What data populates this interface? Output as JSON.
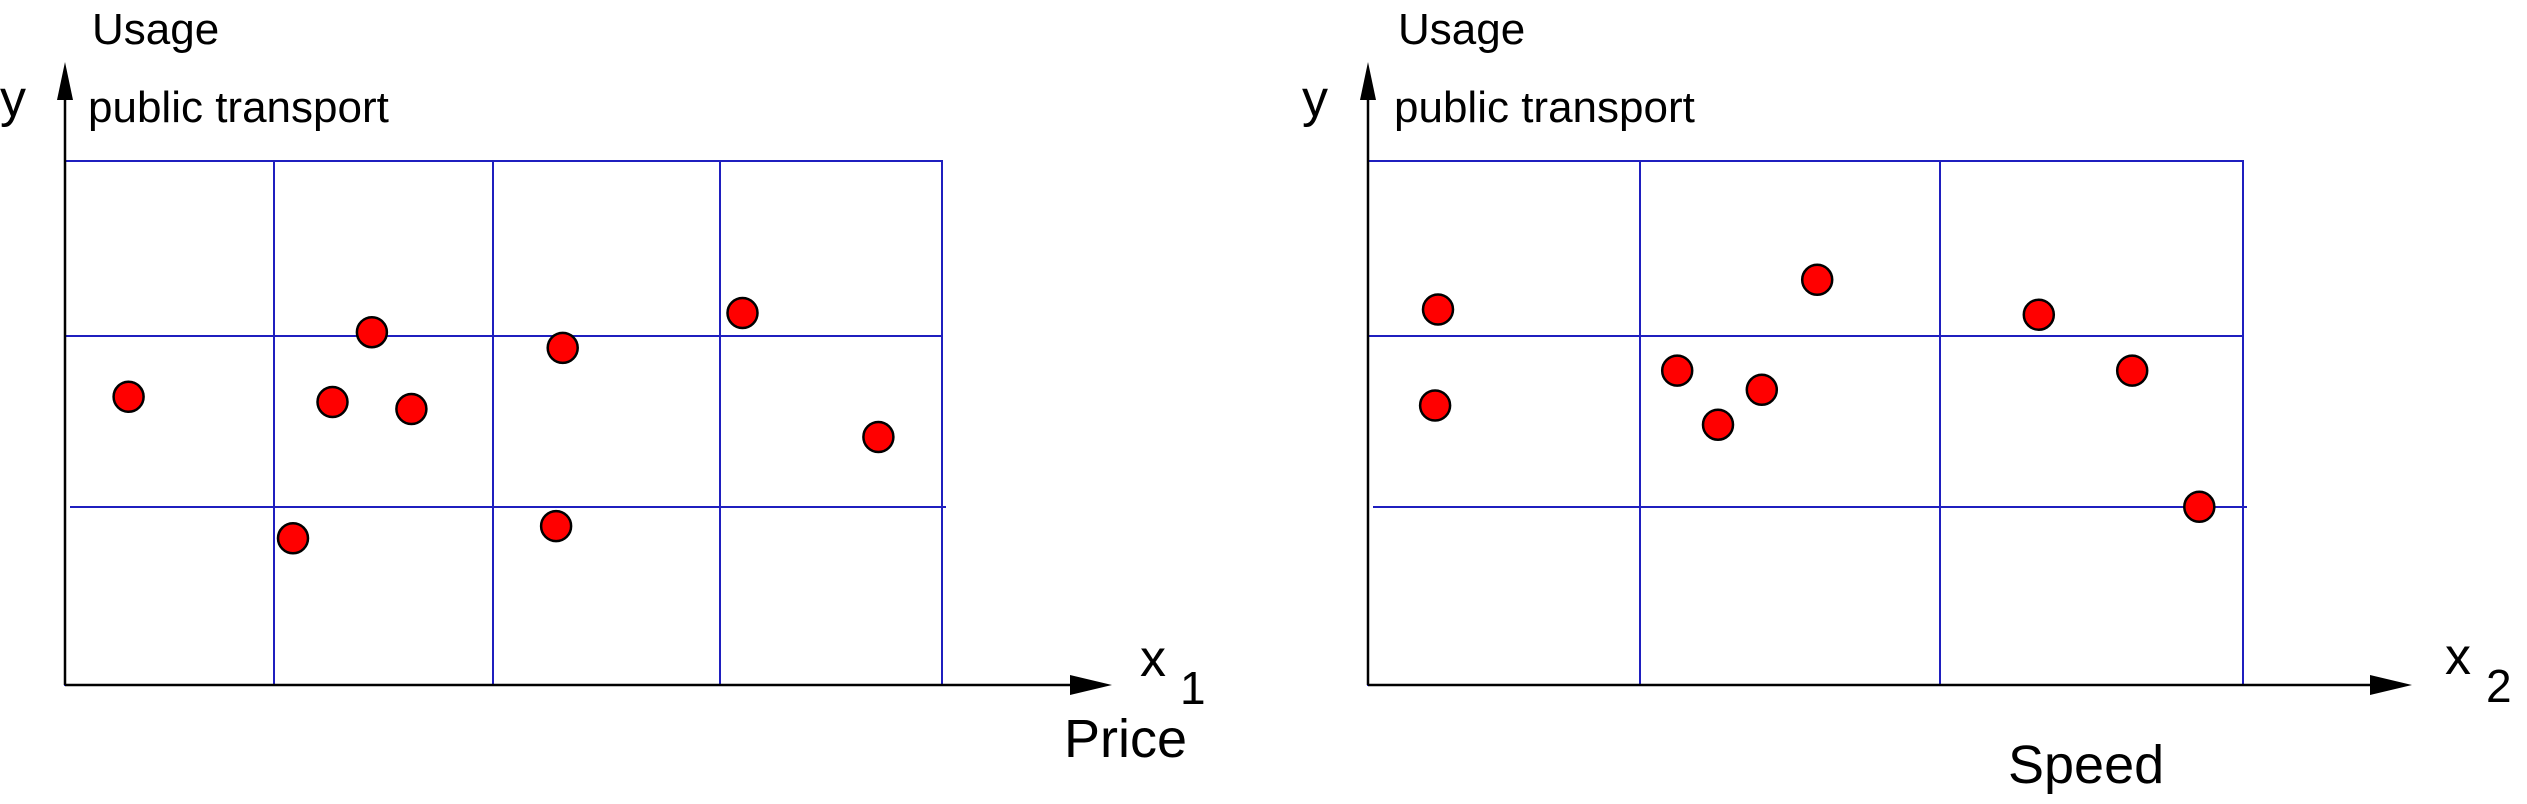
{
  "colors": {
    "grid": "#1f1fbf",
    "point": "#ff0000",
    "axis": "#000000"
  },
  "chart_data": [
    {
      "type": "scatter",
      "title": "",
      "y_axis_symbol": "y",
      "y_label_lines": [
        "Usage",
        "public transport"
      ],
      "x_axis_symbol": "x",
      "x_axis_subscript": "1",
      "xlabel": "Price",
      "grid": true,
      "xlim": [
        0,
        4
      ],
      "ylim": [
        0,
        3
      ],
      "points": [
        {
          "x": 0.29,
          "y": 1.65
        },
        {
          "x": 1.04,
          "y": 0.84
        },
        {
          "x": 1.22,
          "y": 1.62
        },
        {
          "x": 1.4,
          "y": 2.02
        },
        {
          "x": 1.58,
          "y": 1.58
        },
        {
          "x": 2.24,
          "y": 0.91
        },
        {
          "x": 2.27,
          "y": 1.93
        },
        {
          "x": 3.09,
          "y": 2.13
        },
        {
          "x": 3.71,
          "y": 1.42
        }
      ]
    },
    {
      "type": "scatter",
      "title": "",
      "y_axis_symbol": "y",
      "y_label_lines": [
        "Usage",
        "public transport"
      ],
      "x_axis_symbol": "x",
      "x_axis_subscript": "2",
      "xlabel": "Speed",
      "grid": true,
      "xlim": [
        0,
        3
      ],
      "ylim": [
        0,
        3
      ],
      "points": [
        {
          "x": 0.24,
          "y": 2.15
        },
        {
          "x": 0.23,
          "y": 1.6
        },
        {
          "x": 1.06,
          "y": 1.8
        },
        {
          "x": 1.2,
          "y": 1.49
        },
        {
          "x": 1.35,
          "y": 1.69
        },
        {
          "x": 1.54,
          "y": 2.32
        },
        {
          "x": 2.3,
          "y": 2.12
        },
        {
          "x": 2.62,
          "y": 1.8
        },
        {
          "x": 2.85,
          "y": 1.02
        }
      ]
    }
  ]
}
